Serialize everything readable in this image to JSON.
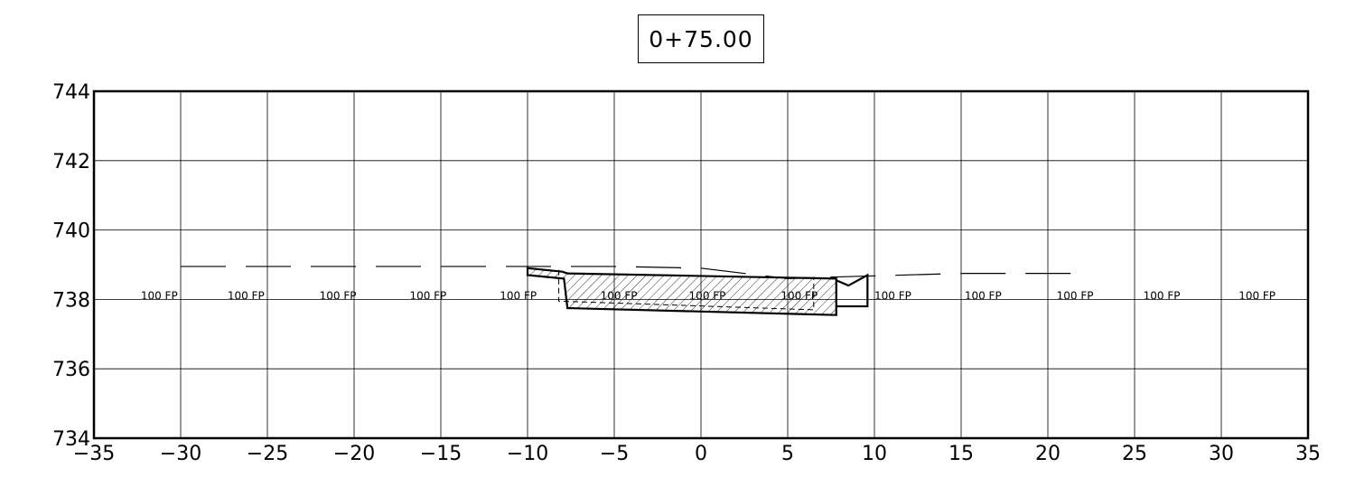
{
  "station": "0+75.00",
  "chart_data": {
    "type": "cross-section",
    "xlim": [
      -35,
      35
    ],
    "ylim": [
      734,
      744
    ],
    "x_ticks": [
      -35,
      -30,
      -25,
      -20,
      -15,
      -10,
      -5,
      0,
      5,
      10,
      15,
      20,
      25,
      30,
      35
    ],
    "x_tick_labels": [
      "−35",
      "−30",
      "−25",
      "−20",
      "−15",
      "−10",
      "−5",
      "0",
      "5",
      "10",
      "15",
      "20",
      "25",
      "30",
      "35"
    ],
    "y_ticks": [
      734,
      736,
      738,
      740,
      742,
      744
    ],
    "y_tick_labels": [
      "734",
      "736",
      "738",
      "740",
      "742",
      "744"
    ],
    "grid": true,
    "floodplain": {
      "label": "100 FP",
      "elevation": 738.1,
      "label_x": [
        -32.3,
        -27.3,
        -22,
        -16.8,
        -11.6,
        -5.8,
        -0.7,
        4.6,
        10,
        15.2,
        20.5,
        25.5,
        31
      ]
    },
    "existing_ground": [
      [
        -30,
        738.95
      ],
      [
        -10,
        738.95
      ],
      [
        -5,
        738.95
      ],
      [
        0,
        738.9
      ],
      [
        5,
        738.6
      ],
      [
        8,
        738.65
      ],
      [
        15,
        738.75
      ],
      [
        22,
        738.75
      ]
    ],
    "proposed_section": [
      [
        -10,
        738.9
      ],
      [
        -10,
        738.7
      ],
      [
        -7.9,
        738.6
      ],
      [
        -7.7,
        737.75
      ],
      [
        7.8,
        737.55
      ],
      [
        7.8,
        738.6
      ],
      [
        -7.7,
        738.75
      ],
      [
        -8,
        738.8
      ]
    ],
    "curb_gutter": [
      [
        7.8,
        738.55
      ],
      [
        8.5,
        738.4
      ],
      [
        9.6,
        738.7
      ],
      [
        9.6,
        737.8
      ],
      [
        7.8,
        737.8
      ]
    ],
    "subgrade_dashed": [
      [
        -8.2,
        738.85
      ],
      [
        -8.2,
        737.95
      ],
      [
        6.5,
        737.7
      ],
      [
        6.5,
        738.65
      ]
    ]
  }
}
